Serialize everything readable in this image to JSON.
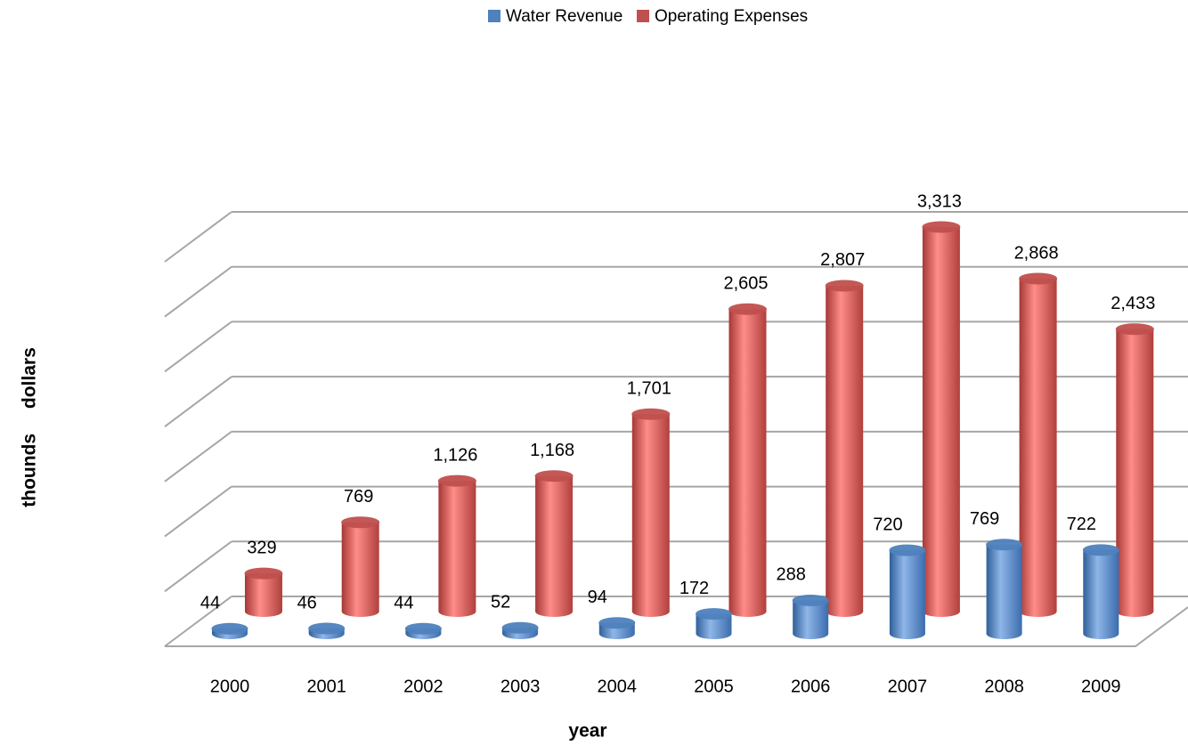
{
  "chart_data": {
    "type": "bar3d",
    "x_label": "year",
    "y_label": "thounds dollars",
    "categories": [
      "2000",
      "2001",
      "2002",
      "2003",
      "2004",
      "2005",
      "2006",
      "2007",
      "2008",
      "2009"
    ],
    "series": [
      {
        "name": "Water Revenue",
        "color": "#4f81bd",
        "values": [
          44,
          46,
          44,
          52,
          94,
          172,
          288,
          720,
          769,
          722
        ]
      },
      {
        "name": "Operating Expenses",
        "color": "#c0504d",
        "values": [
          329,
          769,
          1126,
          1168,
          1701,
          2605,
          2807,
          3313,
          2868,
          2433
        ],
        "value_labels": [
          "329",
          "769",
          "1,126",
          "1,168",
          "1,701",
          "2,605",
          "2,807",
          "3,313",
          "2,868",
          "2,433"
        ]
      }
    ],
    "ylim": [
      0,
      3500
    ],
    "yticks": [
      0,
      500,
      1000,
      1500,
      2000,
      2500,
      3000,
      3500
    ],
    "grid": true,
    "legend": "top"
  }
}
